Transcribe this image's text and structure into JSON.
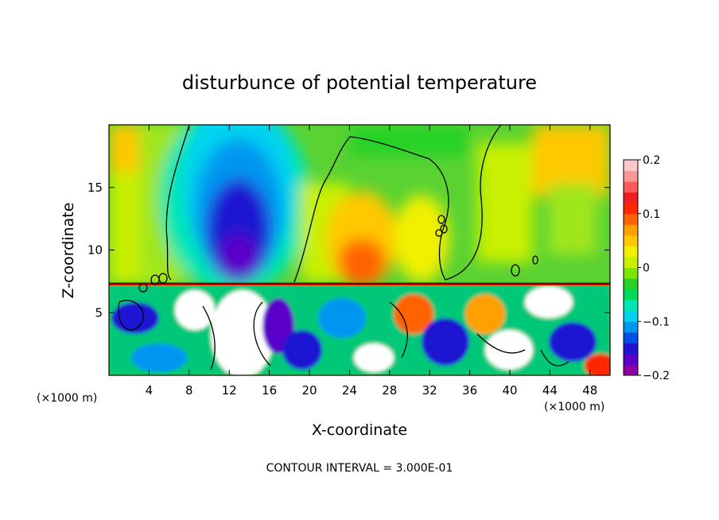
{
  "chart_data": {
    "type": "heatmap",
    "title": "disturbunce of potential temperature",
    "xlabel": "X-coordinate",
    "ylabel": "Z-coordinate",
    "x_unit_left": "(×1000 m)",
    "x_unit_right": "(×1000 m)",
    "xlim": [
      0,
      50
    ],
    "ylim": [
      0,
      20
    ],
    "x_ticks": [
      4,
      8,
      12,
      16,
      20,
      24,
      28,
      32,
      36,
      40,
      44,
      48
    ],
    "y_ticks": [
      5,
      10,
      15
    ],
    "colorbar": {
      "ticks": [
        "0.2",
        "0.1",
        "0",
        "−0.1",
        "−0.2"
      ],
      "tick_values": [
        0.2,
        0.1,
        0,
        -0.1,
        -0.2
      ],
      "range": [
        -0.2,
        0.2
      ],
      "colors": [
        "#8b00a6",
        "#5a00c8",
        "#1e14d2",
        "#0050e6",
        "#0096f0",
        "#00d2f0",
        "#00e6b4",
        "#00dc5a",
        "#28d228",
        "#78e600",
        "#c8f000",
        "#f0f000",
        "#ffc800",
        "#ffa000",
        "#ff6400",
        "#ff2800",
        "#f01e1e",
        "#ff5a5a",
        "#ff9696",
        "#ffc8c8"
      ]
    },
    "boundary_z": 7.3,
    "annotation": "CONTOUR INTERVAL = 3.000E-01"
  }
}
